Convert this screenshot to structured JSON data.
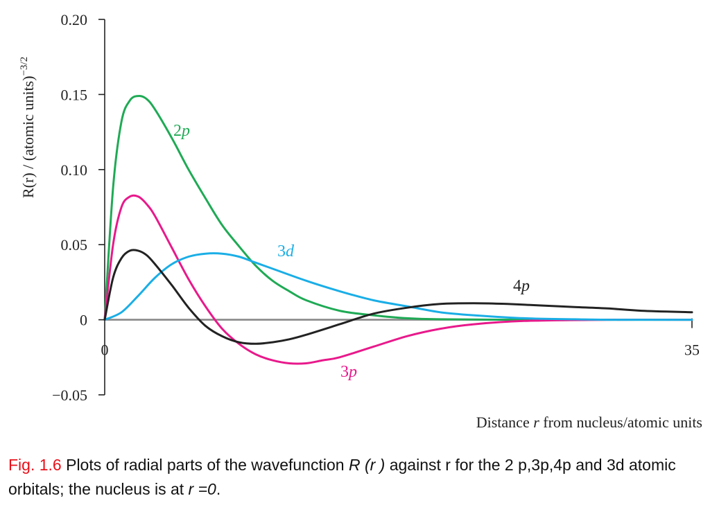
{
  "chart_data": {
    "type": "line",
    "ylabel_text": "R(r) / (atomic units)",
    "ylabel_exp": "−3/2",
    "xlabel_pre": "Distance ",
    "xlabel_var": "r",
    "xlabel_post": " from nucleus/atomic units",
    "xlim": [
      0,
      35
    ],
    "ylim": [
      -0.05,
      0.2
    ],
    "x_ticks": [
      {
        "value": 0,
        "label": "0"
      },
      {
        "value": 35,
        "label": "35"
      }
    ],
    "y_ticks": [
      {
        "value": 0.2,
        "label": "0.20"
      },
      {
        "value": 0.15,
        "label": "0.15"
      },
      {
        "value": 0.1,
        "label": "0.10"
      },
      {
        "value": 0.05,
        "label": "0.05"
      },
      {
        "value": 0,
        "label": "0"
      },
      {
        "value": -0.05,
        "label": "−0.05"
      }
    ],
    "grid": false,
    "series": [
      {
        "name": "2p",
        "num": "2",
        "letter": "p",
        "color": "#1faa55",
        "x": [
          0,
          0.5,
          1,
          1.5,
          2,
          2.5,
          3,
          4,
          5,
          6,
          7,
          8,
          9,
          10,
          11,
          12,
          14,
          16,
          18,
          20,
          25,
          30,
          35
        ],
        "y": [
          0,
          0.088,
          0.132,
          0.146,
          0.149,
          0.147,
          0.14,
          0.121,
          0.1,
          0.081,
          0.063,
          0.049,
          0.036,
          0.026,
          0.019,
          0.013,
          0.006,
          0.003,
          0.001,
          0.0003,
          0,
          0,
          0
        ]
      },
      {
        "name": "3p",
        "num": "3",
        "letter": "p",
        "color": "#e8198b",
        "x": [
          0,
          0.5,
          1,
          1.5,
          2,
          2.5,
          3,
          4,
          5,
          6,
          7,
          8,
          9,
          10,
          11,
          12,
          13,
          14,
          16,
          18,
          20,
          22,
          25,
          30,
          35
        ],
        "y": [
          0,
          0.05,
          0.075,
          0.082,
          0.082,
          0.077,
          0.069,
          0.048,
          0.027,
          0.009,
          -0.006,
          -0.016,
          -0.023,
          -0.027,
          -0.029,
          -0.029,
          -0.027,
          -0.025,
          -0.018,
          -0.011,
          -0.006,
          -0.003,
          -0.0008,
          0,
          0
        ]
      },
      {
        "name": "3d",
        "num": "3",
        "letter": "d",
        "color": "#1aaee6",
        "x": [
          0,
          1,
          2,
          3,
          4,
          5,
          6,
          7,
          8,
          9,
          10,
          12,
          14,
          16,
          18,
          20,
          22,
          25,
          28,
          30,
          35
        ],
        "y": [
          0,
          0.005,
          0.016,
          0.028,
          0.037,
          0.042,
          0.044,
          0.044,
          0.042,
          0.038,
          0.034,
          0.026,
          0.019,
          0.013,
          0.009,
          0.005,
          0.003,
          0.001,
          0.0003,
          0,
          0
        ]
      },
      {
        "name": "4p",
        "num": "4",
        "letter": "p",
        "color": "#222222",
        "x": [
          0,
          0.5,
          1,
          1.5,
          2,
          2.5,
          3,
          4,
          5,
          6,
          7,
          8,
          9,
          10,
          11,
          12,
          14,
          16,
          18,
          20,
          22,
          24,
          26,
          28,
          30,
          32,
          35
        ],
        "y": [
          0,
          0.028,
          0.041,
          0.046,
          0.046,
          0.043,
          0.037,
          0.023,
          0.008,
          -0.004,
          -0.011,
          -0.015,
          -0.016,
          -0.015,
          -0.013,
          -0.01,
          -0.003,
          0.004,
          0.008,
          0.0105,
          0.011,
          0.0105,
          0.0095,
          0.0085,
          0.0075,
          0.006,
          0.005
        ]
      }
    ]
  },
  "caption": {
    "fig_label": "Fig. 1.6",
    "text1": " Plots of radial parts of the wavefunction ",
    "em1": "R (r )",
    "text2": " against r for the 2 p,3p,4p and 3d atomic orbitals; the nucleus is at ",
    "em2": "r =0",
    "text3": "."
  }
}
